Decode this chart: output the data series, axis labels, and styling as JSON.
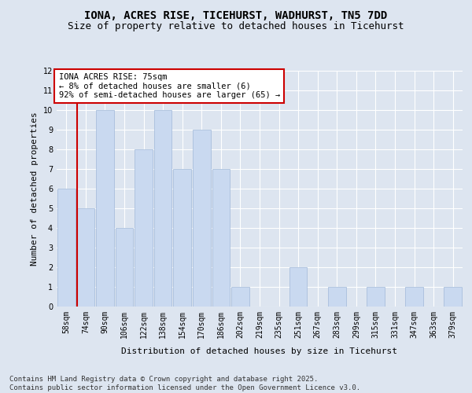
{
  "title": "IONA, ACRES RISE, TICEHURST, WADHURST, TN5 7DD",
  "subtitle": "Size of property relative to detached houses in Ticehurst",
  "xlabel": "Distribution of detached houses by size in Ticehurst",
  "ylabel": "Number of detached properties",
  "categories": [
    "58sqm",
    "74sqm",
    "90sqm",
    "106sqm",
    "122sqm",
    "138sqm",
    "154sqm",
    "170sqm",
    "186sqm",
    "202sqm",
    "219sqm",
    "235sqm",
    "251sqm",
    "267sqm",
    "283sqm",
    "299sqm",
    "315sqm",
    "331sqm",
    "347sqm",
    "363sqm",
    "379sqm"
  ],
  "values": [
    6,
    5,
    10,
    4,
    8,
    10,
    7,
    9,
    7,
    1,
    0,
    0,
    2,
    0,
    1,
    0,
    1,
    0,
    1,
    0,
    1
  ],
  "bar_color": "#c9d9f0",
  "bar_edgecolor": "#a0b8d8",
  "annotation_text": "IONA ACRES RISE: 75sqm\n← 8% of detached houses are smaller (6)\n92% of semi-detached houses are larger (65) →",
  "annotation_box_color": "#ffffff",
  "annotation_box_edgecolor": "#cc0000",
  "annotation_text_color": "#000000",
  "highlight_line_color": "#cc0000",
  "ylim": [
    0,
    12
  ],
  "yticks": [
    0,
    1,
    2,
    3,
    4,
    5,
    6,
    7,
    8,
    9,
    10,
    11,
    12
  ],
  "background_color": "#dde5f0",
  "plot_background_color": "#dde5f0",
  "grid_color": "#ffffff",
  "footer_text": "Contains HM Land Registry data © Crown copyright and database right 2025.\nContains public sector information licensed under the Open Government Licence v3.0.",
  "title_fontsize": 10,
  "subtitle_fontsize": 9,
  "axis_label_fontsize": 8,
  "tick_fontsize": 7,
  "annotation_fontsize": 7.5,
  "footer_fontsize": 6.5
}
